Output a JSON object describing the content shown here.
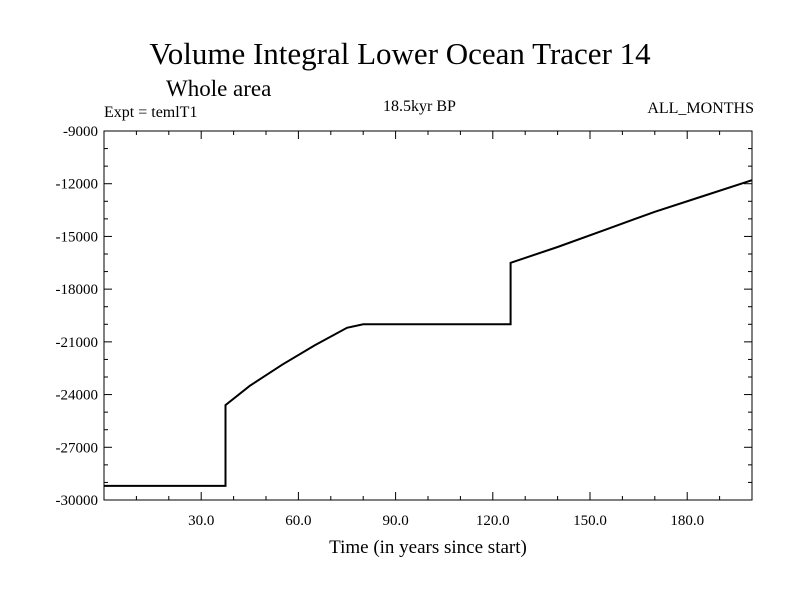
{
  "chart_data": {
    "type": "line",
    "title": "Volume Integral Lower Ocean Tracer 14",
    "subtitle": "Whole area",
    "annotations": {
      "left": "Expt = temlT1",
      "center": "18.5kyr BP",
      "right": "ALL_MONTHS"
    },
    "xlabel": "Time (in years since start)",
    "ylabel": "",
    "xlim": [
      0,
      200
    ],
    "ylim": [
      -30000,
      -9000
    ],
    "xticks": [
      30,
      60,
      90,
      120,
      150,
      180
    ],
    "xtick_labels": [
      "30.0",
      "60.0",
      "90.0",
      "120.0",
      "150.0",
      "180.0"
    ],
    "yticks": [
      -30000,
      -27000,
      -24000,
      -21000,
      -18000,
      -15000,
      -12000,
      -9000
    ],
    "ytick_labels": [
      "-30000",
      "-27000",
      "-24000",
      "-21000",
      "-18000",
      "-15000",
      "-12000",
      "-9000"
    ],
    "series": [
      {
        "name": "Volume Integral Lower Ocean Tracer 14",
        "x": [
          0,
          37.5,
          37.5,
          45,
          55,
          65,
          75,
          80,
          125,
          125.5,
          125.5,
          140,
          155,
          170,
          185,
          200
        ],
        "y": [
          -29200,
          -29200,
          -24600,
          -23500,
          -22300,
          -21200,
          -20200,
          -20000,
          -20000,
          -20000,
          -16500,
          -15600,
          -14600,
          -13600,
          -12700,
          -11800
        ]
      }
    ]
  }
}
